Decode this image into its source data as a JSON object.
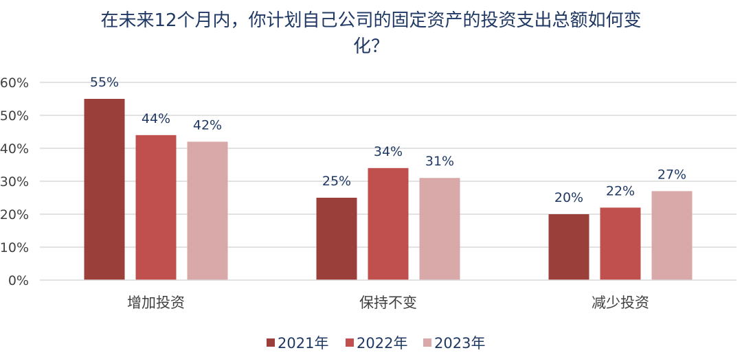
{
  "chart_data": {
    "type": "bar",
    "title": "在未来12个月内，你计划自己公司的固定资产的投资支出总额如何变化？",
    "title_lines": [
      "在未来12个月内，你计划自己公司的固定资产的投资支出总额如何变",
      "化？"
    ],
    "categories": [
      "增加投资",
      "保持不变",
      "减少投资"
    ],
    "series": [
      {
        "name": "2021年",
        "values": [
          55,
          25,
          20
        ],
        "labels": [
          "55%",
          "25%",
          "20%"
        ],
        "color": "#9b3f3a"
      },
      {
        "name": "2022年",
        "values": [
          44,
          34,
          22
        ],
        "labels": [
          "44%",
          "34%",
          "22%"
        ],
        "color": "#c0504d"
      },
      {
        "name": "2023年",
        "values": [
          42,
          31,
          27
        ],
        "labels": [
          "42%",
          "31%",
          "27%"
        ],
        "color": "#d8a9a8"
      }
    ],
    "ylim": [
      0,
      60
    ],
    "yticks": [
      0,
      10,
      20,
      30,
      40,
      50,
      60
    ],
    "ytick_labels": [
      "0%",
      "10%",
      "20%",
      "30%",
      "40%",
      "50%",
      "60%"
    ],
    "xlabel": "",
    "ylabel": "",
    "grid": true,
    "legend_position": "bottom",
    "colors": {
      "grid": "#d9d9d9",
      "title": "#1f3864",
      "axis_text": "#404040"
    }
  }
}
